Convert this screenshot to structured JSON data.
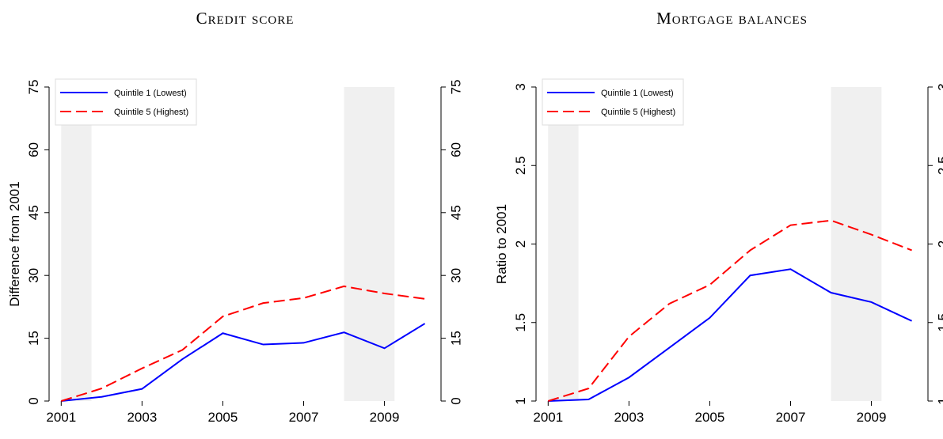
{
  "chart_data": [
    {
      "type": "line",
      "title": "Credit score",
      "ylabel": "Difference from 2001",
      "x": [
        2001,
        2002,
        2003,
        2004,
        2005,
        2006,
        2007,
        2008,
        2009,
        2010
      ],
      "xlim": [
        2000.7,
        2010.4
      ],
      "xticks": [
        2001,
        2003,
        2005,
        2007,
        2009
      ],
      "ylim": [
        0,
        75
      ],
      "yticks": [
        0,
        15,
        30,
        45,
        60,
        75
      ],
      "shaded_regions": [
        [
          2001,
          2001.75
        ],
        [
          2008,
          2009.25
        ]
      ],
      "shade_color": "#f0f0f0",
      "legend": "upper left",
      "series": [
        {
          "name": "Quintile 1 (Lowest)",
          "color": "#0000ff",
          "linestyle": "solid",
          "values": [
            0,
            1,
            2.9,
            10,
            16.2,
            13.5,
            13.9,
            16.4,
            12.6,
            18.5
          ]
        },
        {
          "name": "Quintile 5 (Highest)",
          "color": "#ff0000",
          "linestyle": "dashed",
          "values": [
            0,
            3,
            7.8,
            12.2,
            20.2,
            23.4,
            24.6,
            27.4,
            25.7,
            24.4
          ]
        }
      ]
    },
    {
      "type": "line",
      "title": "Mortgage balances",
      "ylabel": "Ratio to 2001",
      "x": [
        2001,
        2002,
        2003,
        2004,
        2005,
        2006,
        2007,
        2008,
        2009,
        2010
      ],
      "xlim": [
        2000.7,
        2010.4
      ],
      "xticks": [
        2001,
        2003,
        2005,
        2007,
        2009
      ],
      "ylim": [
        1,
        3
      ],
      "yticks": [
        1,
        1.5,
        2,
        2.5,
        3
      ],
      "shaded_regions": [
        [
          2001,
          2001.75
        ],
        [
          2008,
          2009.25
        ]
      ],
      "shade_color": "#f0f0f0",
      "legend": "upper left",
      "series": [
        {
          "name": "Quintile 1 (Lowest)",
          "color": "#0000ff",
          "linestyle": "solid",
          "values": [
            1,
            1.01,
            1.15,
            1.34,
            1.53,
            1.8,
            1.84,
            1.69,
            1.63,
            1.51
          ]
        },
        {
          "name": "Quintile 5 (Highest)",
          "color": "#ff0000",
          "linestyle": "dashed",
          "values": [
            1,
            1.08,
            1.41,
            1.62,
            1.74,
            1.96,
            2.12,
            2.15,
            2.06,
            1.96
          ]
        }
      ]
    }
  ]
}
